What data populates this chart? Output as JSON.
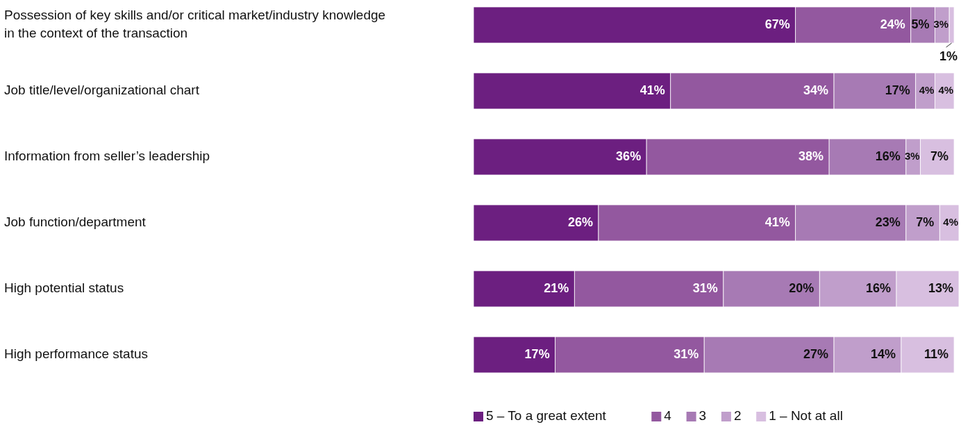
{
  "chart_data": {
    "type": "bar",
    "orientation": "horizontal",
    "stacked": true,
    "legend": "bottom",
    "tick_labels": "y",
    "categories": [
      "Possession of key skills and/or critical market/industry knowledge in the context of the transaction",
      "Job title/level/organizational chart",
      "Information from seller’s leadership",
      "Job function/department",
      "High potential status",
      "High performance status"
    ],
    "series": [
      {
        "name": "5 – To a great extent",
        "color": "#6c1f80",
        "values": [
          67,
          41,
          36,
          26,
          21,
          17
        ],
        "value_labels": [
          "67%",
          "41%",
          "36%",
          "26%",
          "21%",
          "17%"
        ]
      },
      {
        "name": "4",
        "color": "#93589f",
        "values": [
          24,
          34,
          38,
          41,
          31,
          31
        ],
        "value_labels": [
          "24%",
          "34%",
          "38%",
          "41%",
          "31%",
          "31%"
        ]
      },
      {
        "name": "3",
        "color": "#a77ab4",
        "values": [
          5,
          17,
          16,
          23,
          20,
          27
        ],
        "value_labels": [
          "5%",
          "17%",
          "16%",
          "23%",
          "20%",
          "27%"
        ]
      },
      {
        "name": "2",
        "color": "#c09ecb",
        "values": [
          3,
          4,
          3,
          7,
          16,
          14
        ],
        "value_labels": [
          "3%",
          "4%",
          "3%",
          "7%",
          "16%",
          "14%"
        ]
      },
      {
        "name": "1 – Not at all",
        "color": "#d8bfe0",
        "values": [
          1,
          4,
          7,
          4,
          13,
          11
        ],
        "value_labels": [
          "1%",
          "4%",
          "7%",
          "4%",
          "13%",
          "11%"
        ]
      }
    ]
  }
}
